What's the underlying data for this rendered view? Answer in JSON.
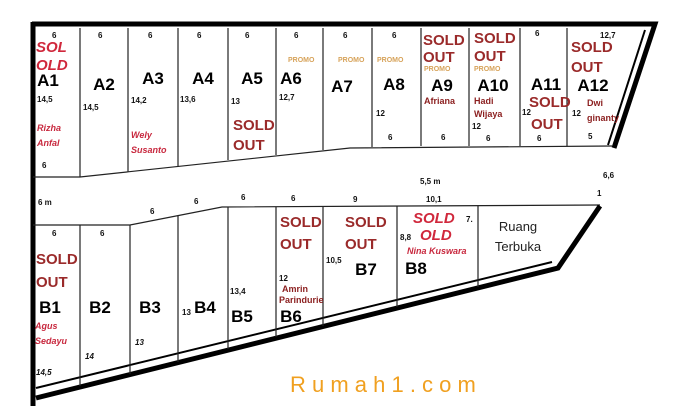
{
  "blocks": {
    "a": [
      {
        "label": "A1",
        "top": "6",
        "depth": "14,5",
        "bottom": "6",
        "status": "SOL OLD",
        "status1": "SOL",
        "status2": "OLD",
        "owner1": "Rizha",
        "owner2": "Anfal"
      },
      {
        "label": "A2",
        "top": "6",
        "depth": "14,5"
      },
      {
        "label": "A3",
        "top": "6",
        "depth": "14,2",
        "owner1": "Wely",
        "owner2": "Susanto"
      },
      {
        "label": "A4",
        "top": "6",
        "depth": "13,6"
      },
      {
        "label": "A5",
        "top": "6",
        "depth": "13",
        "status1": "SOLD",
        "status2": "OUT"
      },
      {
        "label": "A6",
        "top": "6",
        "depth": "12,7",
        "promo": "PROMO"
      },
      {
        "label": "A7",
        "top": "6",
        "promo": "PROMO"
      },
      {
        "label": "A8",
        "top": "6",
        "depth": "12",
        "bottom": "6",
        "promo": "PROMO"
      },
      {
        "label": "A9",
        "status1": "SOLD",
        "status2": "OUT",
        "promo": "PROMO",
        "owner1": "Afriana",
        "bottom": "6"
      },
      {
        "label": "A10",
        "status1": "SOLD",
        "status2": "OUT",
        "promo": "PROMO",
        "owner1": "Hadi",
        "owner2": "Wijaya",
        "depth": "12",
        "bottom": "6"
      },
      {
        "label": "A11",
        "top": "6",
        "status1": "SOLD",
        "status2": "OUT",
        "depth": "12",
        "bottom": "6"
      },
      {
        "label": "A12",
        "top": "12,7",
        "status1": "SOLD",
        "status2": "OUT",
        "owner1": "Dwi",
        "owner2": "ginanty",
        "depth": "12",
        "bottom": "5"
      }
    ],
    "b": [
      {
        "label": "B1",
        "top": "6",
        "depth": "14,5",
        "status1": "SOLD",
        "status2": "OUT",
        "owner1": "Agus",
        "owner2": "Sedayu"
      },
      {
        "label": "B2",
        "top": "6",
        "depth": "14"
      },
      {
        "label": "B3",
        "depth": "13"
      },
      {
        "label": "B4",
        "depth": "13"
      },
      {
        "label": "B5",
        "depth": "13,4"
      },
      {
        "label": "B6",
        "depth": "12",
        "status1": "SOLD",
        "status2": "OUT",
        "owner1": "Amrin",
        "owner2": "Parindurie"
      },
      {
        "label": "B7",
        "top": "9",
        "depth": "10,5",
        "status1": "SOLD",
        "status2": "OUT"
      },
      {
        "label": "B8",
        "top": "10,1",
        "depth": "8,8",
        "side": "7.",
        "status1": "SOLD",
        "status2": "OLD",
        "owner1": "Nina Kuswara"
      }
    ]
  },
  "road": {
    "left_width": "6 m",
    "mid_width": "5,5 m",
    "right_width": "6,6",
    "corner": "1",
    "edge_dims": [
      "6",
      "6",
      "6",
      "6"
    ]
  },
  "open_space": {
    "line1": "Ruang",
    "line2": "Terbuka"
  },
  "watermark": "R u m a h 1 . c o m",
  "colors": {
    "sold": "#9a2a2a",
    "owner": "#c8283e",
    "promo": "#d7a35a",
    "watermark": "#f0a020"
  }
}
